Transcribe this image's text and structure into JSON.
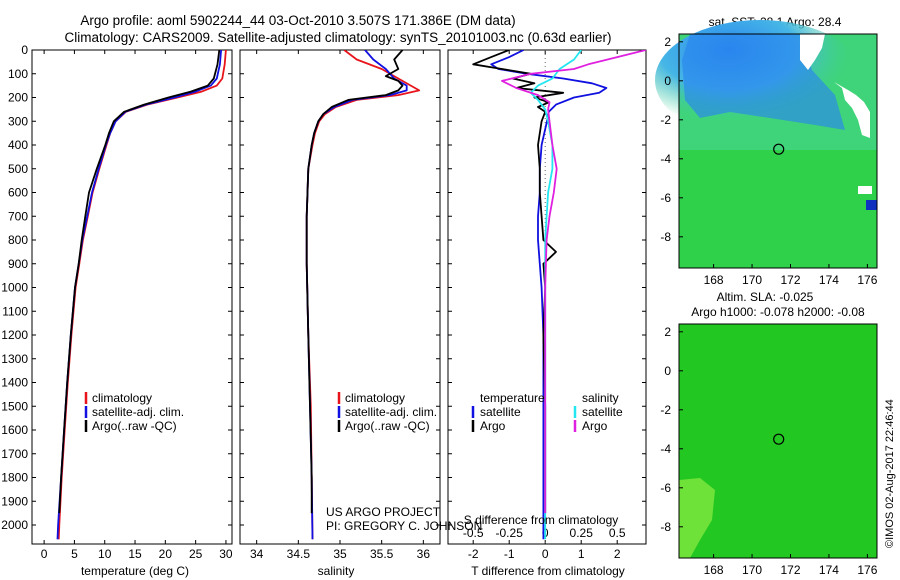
{
  "title": {
    "line1": "Argo profile: aoml 5902244_44 03-Oct-2010 3.507S 171.386E (DM data)",
    "line2": "Climatology: CARS2009. Satellite-adjusted climatology: synTS_20101003.nc (0.63d earlier)"
  },
  "credits": {
    "project": "US ARGO PROJECT",
    "pi": "PI: GREGORY C. JOHNSON",
    "imos": "©IMOS 02-Aug-2017 22:46:44"
  },
  "colors": {
    "climatology": "#e8141b",
    "satellite": "#1010e0",
    "argo": "#000000",
    "sat_salinity": "#22e6f0",
    "argo_salinity": "#e020e0",
    "ocean_green": "#22cc22",
    "ocean_blue": "#33aaee"
  },
  "chart_data": [
    {
      "type": "line",
      "id": "temperature",
      "xlabel": "temperature (deg C)",
      "ylabel": "",
      "xlim": [
        -2,
        31
      ],
      "ylim": [
        2080,
        0
      ],
      "x_ticks": [
        "0",
        "5",
        "10",
        "15",
        "20",
        "25",
        "30"
      ],
      "y_ticks": [
        "0",
        "100",
        "200",
        "300",
        "400",
        "500",
        "600",
        "700",
        "800",
        "900",
        "1000",
        "1100",
        "1200",
        "1300",
        "1400",
        "1500",
        "1600",
        "1700",
        "1800",
        "1900",
        "2000"
      ],
      "legend": [
        "climatology",
        "satellite-adj. clim.",
        "Argo(..raw -QC)"
      ],
      "series": [
        {
          "name": "climatology",
          "depth": [
            0,
            60,
            120,
            150,
            175,
            200,
            230,
            260,
            300,
            350,
            400,
            500,
            600,
            700,
            800,
            900,
            1000,
            1200,
            1400,
            1600,
            1800,
            2000,
            2060
          ],
          "values": [
            30,
            29.8,
            29.4,
            28.5,
            26,
            22,
            17,
            13.5,
            11.8,
            10.9,
            10.3,
            9.1,
            8,
            7.2,
            6.4,
            5.8,
            5.2,
            4.5,
            3.9,
            3.4,
            2.9,
            2.5,
            2.4
          ]
        },
        {
          "name": "satellite",
          "depth": [
            0,
            60,
            120,
            150,
            175,
            200,
            230,
            260,
            300,
            350,
            400,
            500,
            600,
            700,
            800,
            900,
            1000,
            1200,
            1400,
            1600,
            1800,
            2000,
            2060
          ],
          "values": [
            29.2,
            29,
            28.5,
            27.5,
            25,
            21.5,
            16.8,
            13.4,
            11.8,
            10.9,
            10.2,
            9,
            7.9,
            7.1,
            6.3,
            5.7,
            5.1,
            4.4,
            3.8,
            3.3,
            2.8,
            2.3,
            2.2
          ]
        },
        {
          "name": "Argo",
          "depth": [
            0,
            60,
            120,
            150,
            175,
            200,
            230,
            260,
            300,
            350,
            400,
            500,
            600,
            700,
            800,
            900,
            1000,
            1200,
            1400,
            1600,
            1800,
            1950
          ],
          "values": [
            28.9,
            28.6,
            28,
            27,
            24.2,
            20.5,
            16.5,
            13.2,
            11.5,
            10.7,
            10.1,
            8.7,
            7.4,
            6.8,
            6.2,
            5.7,
            5.1,
            4.4,
            3.8,
            3.3,
            2.8,
            2.5
          ]
        }
      ]
    },
    {
      "type": "line",
      "id": "salinity",
      "xlabel": "salinity",
      "xlim": [
        33.8,
        36.2
      ],
      "ylim": [
        2080,
        0
      ],
      "x_ticks": [
        "34",
        "34.5",
        "35",
        "35.5",
        "36"
      ],
      "legend": [
        "climatology",
        "satellite-adj. clim.",
        "Argo(..raw -QC)"
      ],
      "series": [
        {
          "name": "climatology",
          "depth": [
            0,
            40,
            80,
            120,
            150,
            170,
            190,
            210,
            240,
            270,
            300,
            350,
            400,
            500,
            700,
            900,
            1200,
            1500,
            1800,
            2060
          ],
          "values": [
            35.05,
            35.2,
            35.5,
            35.7,
            35.85,
            35.95,
            35.7,
            35.2,
            34.95,
            34.82,
            34.75,
            34.7,
            34.67,
            34.62,
            34.6,
            34.6,
            34.62,
            34.65,
            34.66,
            34.67
          ]
        },
        {
          "name": "satellite",
          "depth": [
            0,
            40,
            80,
            120,
            150,
            170,
            190,
            210,
            240,
            270,
            300,
            350,
            400,
            500,
            700,
            900,
            1200,
            1500,
            1800,
            2060
          ],
          "values": [
            35.3,
            35.4,
            35.55,
            35.65,
            35.8,
            35.8,
            35.6,
            35.15,
            34.93,
            34.8,
            34.74,
            34.69,
            34.66,
            34.62,
            34.6,
            34.6,
            34.62,
            34.64,
            34.66,
            34.67
          ]
        },
        {
          "name": "Argo",
          "depth": [
            0,
            40,
            80,
            110,
            130,
            150,
            170,
            190,
            210,
            240,
            270,
            300,
            350,
            400,
            500,
            700,
            900,
            1200,
            1500,
            1800,
            1950
          ],
          "values": [
            35.75,
            35.65,
            35.7,
            35.55,
            35.7,
            35.75,
            35.7,
            35.55,
            35.1,
            34.9,
            34.8,
            34.74,
            34.69,
            34.66,
            34.62,
            34.6,
            34.6,
            34.62,
            34.64,
            34.66,
            34.66
          ]
        }
      ]
    },
    {
      "type": "line",
      "id": "difference",
      "xlabel": "T difference from climatology",
      "xlabel_top": "S difference from climatology",
      "xlim": [
        -2.7,
        2.8
      ],
      "ylim": [
        2080,
        0
      ],
      "x_ticks": [
        "-2",
        "-1",
        "0",
        "1",
        "2"
      ],
      "x_ticks_top": [
        "-0.5",
        "-0.25",
        "0",
        "0.25",
        "0.5"
      ],
      "legend_temperature_title": "temperature",
      "legend_salinity_title": "salinity",
      "legend_temperature": [
        "satellite",
        "Argo"
      ],
      "legend_salinity": [
        "satellite",
        "Argo"
      ],
      "series": [
        {
          "name": "T satellite",
          "depth": [
            0,
            30,
            60,
            80,
            100,
            120,
            140,
            160,
            180,
            200,
            230,
            260,
            300,
            400,
            500,
            600,
            700,
            800,
            900,
            1000,
            1200,
            1500,
            1800,
            2060
          ],
          "values": [
            -0.6,
            -1,
            -1.5,
            -1.3,
            -0.5,
            0.5,
            1.3,
            1.7,
            1.5,
            0.8,
            0.3,
            0.1,
            0.05,
            -0.1,
            -0.15,
            -0.15,
            -0.2,
            -0.2,
            -0.15,
            -0.1,
            -0.05,
            -0.05,
            -0.05,
            -0.05
          ]
        },
        {
          "name": "T Argo",
          "depth": [
            0,
            30,
            60,
            80,
            100,
            120,
            140,
            160,
            180,
            200,
            220,
            240,
            260,
            300,
            400,
            500,
            600,
            700,
            800,
            850,
            900,
            1000,
            1200,
            1500,
            1800,
            1950
          ],
          "values": [
            -1,
            -1.5,
            -2,
            -1.2,
            -0.4,
            -0.9,
            -0.3,
            -0.8,
            0.5,
            -0.3,
            0.1,
            -0.2,
            0,
            -0.1,
            -0.2,
            -0.15,
            -0.15,
            -0.1,
            -0.05,
            0.3,
            -0.05,
            0,
            -0.05,
            0,
            0,
            0
          ]
        },
        {
          "name": "S satellite",
          "depth": [
            0,
            40,
            80,
            120,
            150,
            180,
            210,
            250,
            300,
            400,
            500,
            600,
            700,
            800,
            1000,
            1200,
            1500,
            1800,
            2060
          ],
          "values": [
            0.25,
            0.2,
            0.1,
            0.05,
            -0.05,
            -0.1,
            -0.05,
            0,
            0.02,
            0.05,
            0.05,
            0.02,
            0.01,
            0,
            0,
            0,
            0,
            0,
            0
          ]
        },
        {
          "name": "S Argo",
          "depth": [
            0,
            30,
            60,
            80,
            100,
            130,
            160,
            190,
            220,
            250,
            300,
            400,
            500,
            600,
            700,
            800,
            1000,
            1200,
            1500,
            1800,
            1950
          ],
          "values": [
            0.7,
            0.5,
            0.3,
            0.2,
            -0.1,
            -0.3,
            -0.2,
            -0.05,
            0.03,
            0.02,
            0.03,
            0.05,
            0.08,
            0.06,
            0.03,
            0.01,
            0,
            0,
            0,
            0,
            0
          ]
        }
      ]
    },
    {
      "type": "heatmap",
      "id": "sst-map",
      "title": "sat. SST: 28.1  Argo: 28.4",
      "x_ticks": [
        "168",
        "170",
        "172",
        "174",
        "176"
      ],
      "y_ticks": [
        "2",
        "0",
        "-2",
        "-4",
        "-6",
        "-8"
      ],
      "xlim": [
        166.2,
        176.5
      ],
      "ylim": [
        -9.6,
        2.4
      ],
      "marker": {
        "lon": 171.386,
        "lat": -3.507
      }
    },
    {
      "type": "heatmap",
      "id": "sla-map",
      "title_line1": "Altim. SLA: -0.025",
      "title_line2": "Argo h1000: -0.078 h2000: -0.08",
      "x_ticks": [
        "168",
        "170",
        "172",
        "174",
        "176"
      ],
      "y_ticks": [
        "2",
        "0",
        "-2",
        "-4",
        "-6",
        "-8"
      ],
      "xlim": [
        166.2,
        176.5
      ],
      "ylim": [
        -9.6,
        2.4
      ],
      "marker": {
        "lon": 171.386,
        "lat": -3.507
      }
    }
  ]
}
